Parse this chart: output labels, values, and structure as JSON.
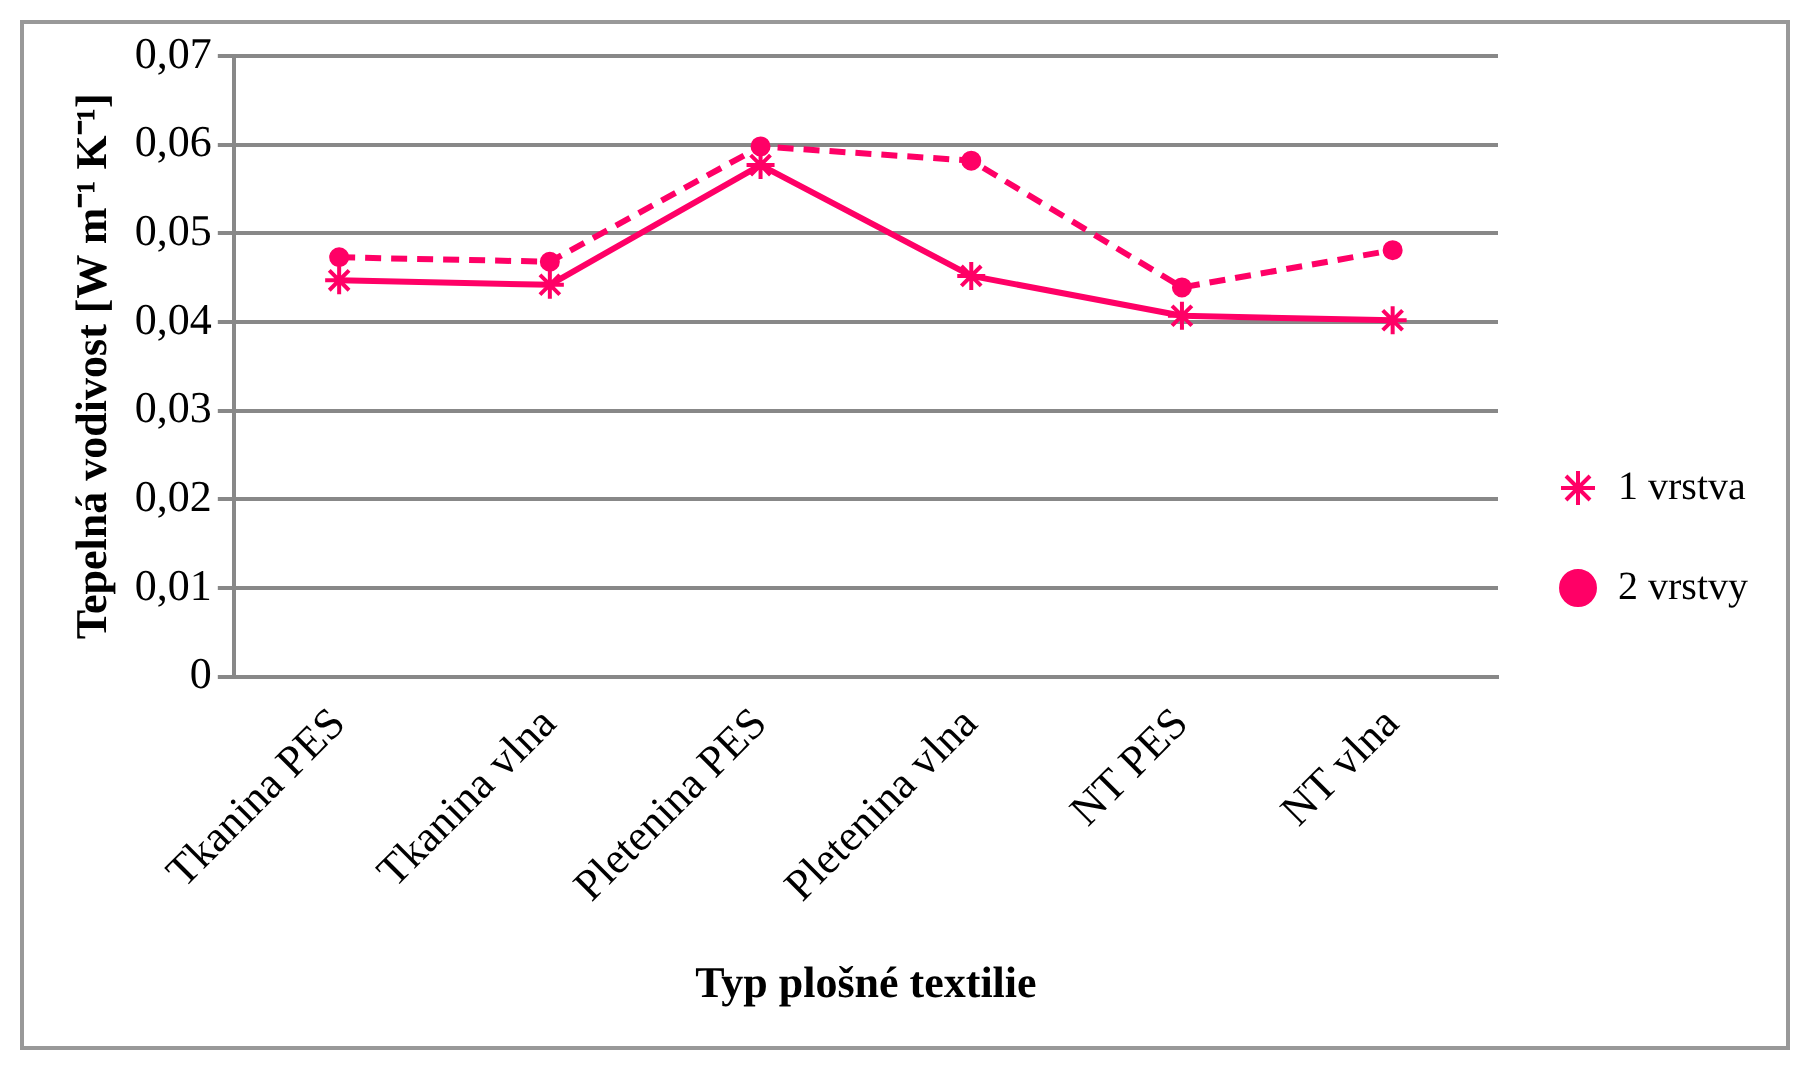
{
  "chart_data": {
    "type": "line",
    "xlabel": "Typ plošné textilie",
    "ylabel": "Tepelná vodivost [W m⁻¹ K⁻¹]",
    "categories": [
      "Tkanina PES",
      "Tkanina vlna",
      "Pletenina PES",
      "Pletenina vlna",
      "NT PES",
      "NT vlna"
    ],
    "series": [
      {
        "name": "1 vrstva",
        "color": "#ff0066",
        "marker": "cross",
        "line_style": "solid",
        "values": [
          0.0447,
          0.0442,
          0.0577,
          0.0452,
          0.0407,
          0.0402
        ]
      },
      {
        "name": "2 vrstvy",
        "color": "#ff0066",
        "marker": "circle",
        "line_style": "dashed",
        "values": [
          0.0473,
          0.0468,
          0.0598,
          0.0582,
          0.0439,
          0.0481
        ]
      }
    ],
    "ylim": [
      0,
      0.07
    ],
    "yticks": [
      {
        "value": 0,
        "label": "0"
      },
      {
        "value": 0.01,
        "label": "0,01"
      },
      {
        "value": 0.02,
        "label": "0,02"
      },
      {
        "value": 0.03,
        "label": "0,03"
      },
      {
        "value": 0.04,
        "label": "0,04"
      },
      {
        "value": 0.05,
        "label": "0,05"
      },
      {
        "value": 0.06,
        "label": "0,06"
      },
      {
        "value": 0.07,
        "label": "0,07"
      }
    ],
    "grid": "y",
    "legend": "right"
  }
}
